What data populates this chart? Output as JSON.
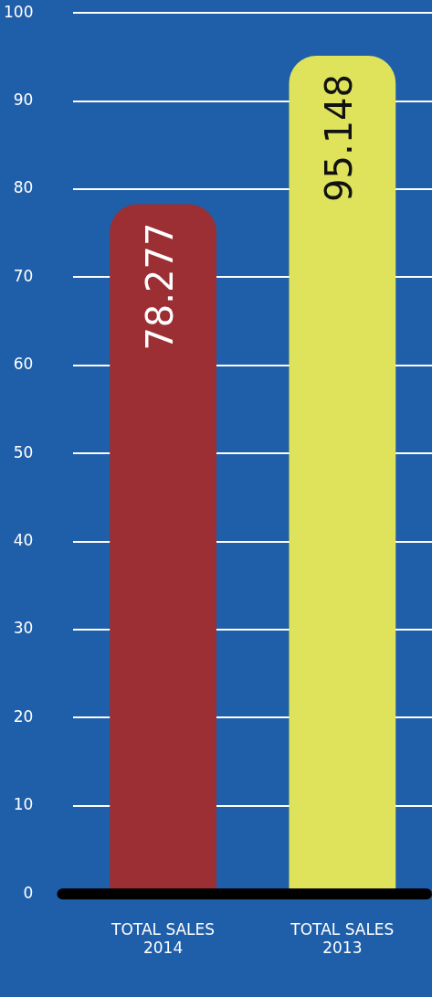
{
  "chart_data": {
    "type": "bar",
    "categories": [
      "TOTAL SALES 2014",
      "TOTAL SALES 2013"
    ],
    "values": [
      78.277,
      95.148
    ],
    "colors": [
      "#9b2f34",
      "#dfe35c"
    ],
    "ylim": [
      0,
      100
    ],
    "yticks": [
      0,
      10,
      20,
      30,
      40,
      50,
      60,
      70,
      80,
      90,
      100
    ],
    "grid": "y",
    "legend": false,
    "data_labels": true
  }
}
